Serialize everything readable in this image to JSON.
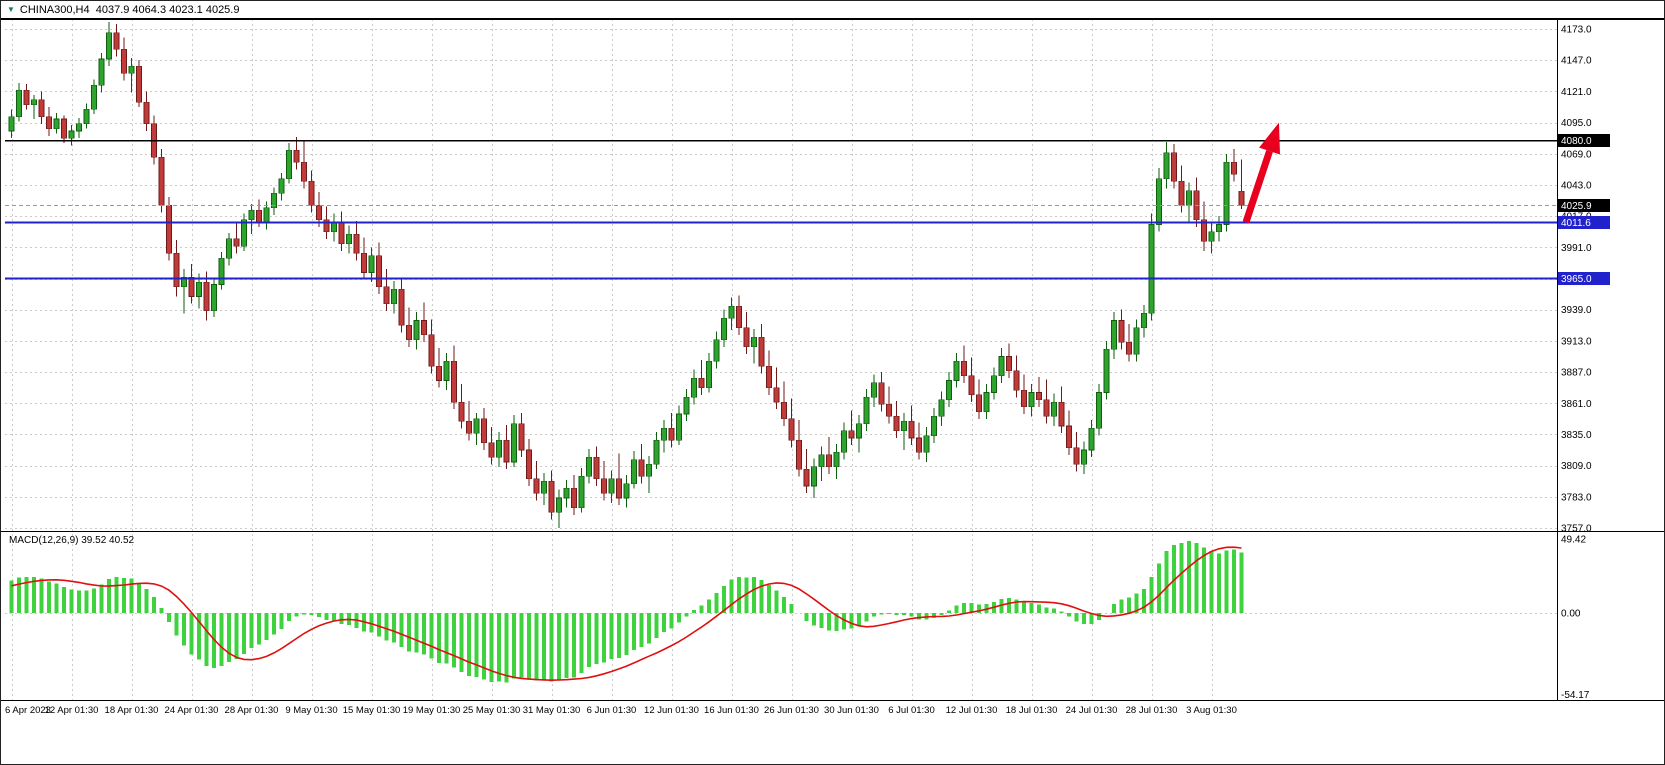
{
  "header": {
    "title": "CHINA300,H4  4037.9 4064.3 4023.1 4025.9",
    "symbol": "CHINA300",
    "timeframe": "H4"
  },
  "style": {
    "up_fill": "#2EA32E",
    "up_stroke": "#0E5E0E",
    "down_fill": "#C23B3B",
    "down_stroke": "#6E1A1A",
    "macd_bar": "#3FD23F",
    "macd_signal": "#E01010",
    "grid": "#CBCBCB",
    "background": "#FFFFFF",
    "frame": "#000000",
    "current_price_line": "#999999"
  },
  "chart_data": {
    "type": "candlestick",
    "title": "CHINA300,H4",
    "ohlc_current": {
      "open": 4037.9,
      "high": 4064.3,
      "low": 4023.1,
      "close": 4025.9
    },
    "price_axis": {
      "min": 3757.0,
      "max": 4173.0,
      "ticks": [
        "4173.0",
        "4147.0",
        "4121.0",
        "4095.0",
        "4069.0",
        "4043.0",
        "4017.0",
        "3991.0",
        "3965.0",
        "3939.0",
        "3913.0",
        "3887.0",
        "3861.0",
        "3835.0",
        "3809.0",
        "3783.0",
        "3757.0"
      ]
    },
    "time_labels": [
      "6 Apr 2023",
      "12 Apr 01:30",
      "18 Apr 01:30",
      "24 Apr 01:30",
      "28 Apr 01:30",
      "9 May 01:30",
      "15 May 01:30",
      "19 May 01:30",
      "25 May 01:30",
      "31 May 01:30",
      "6 Jun 01:30",
      "12 Jun 01:30",
      "16 Jun 01:30",
      "26 Jun 01:30",
      "30 Jun 01:30",
      "6 Jul 01:30",
      "12 Jul 01:30",
      "18 Jul 01:30",
      "24 Jul 01:30",
      "28 Jul 01:30",
      "3 Aug 01:30"
    ],
    "bars_per_time_label": 8,
    "candles": [
      [
        4088,
        4106,
        4082,
        4100
      ],
      [
        4100,
        4128,
        4096,
        4122
      ],
      [
        4122,
        4127,
        4106,
        4110
      ],
      [
        4110,
        4118,
        4098,
        4114
      ],
      [
        4114,
        4121,
        4094,
        4100
      ],
      [
        4100,
        4108,
        4084,
        4090
      ],
      [
        4090,
        4103,
        4086,
        4098
      ],
      [
        4098,
        4101,
        4078,
        4082
      ],
      [
        4082,
        4093,
        4076,
        4088
      ],
      [
        4088,
        4099,
        4082,
        4094
      ],
      [
        4094,
        4111,
        4090,
        4106
      ],
      [
        4106,
        4131,
        4102,
        4126
      ],
      [
        4126,
        4153,
        4120,
        4148
      ],
      [
        4148,
        4179,
        4142,
        4170
      ],
      [
        4170,
        4177,
        4150,
        4156
      ],
      [
        4156,
        4166,
        4130,
        4136
      ],
      [
        4136,
        4149,
        4120,
        4142
      ],
      [
        4142,
        4147,
        4108,
        4112
      ],
      [
        4112,
        4121,
        4088,
        4094
      ],
      [
        4094,
        4101,
        4060,
        4066
      ],
      [
        4066,
        4073,
        4020,
        4026
      ],
      [
        4026,
        4033,
        3980,
        3986
      ],
      [
        3986,
        3997,
        3950,
        3958
      ],
      [
        3958,
        3973,
        3936,
        3966
      ],
      [
        3966,
        3977,
        3944,
        3950
      ],
      [
        3950,
        3969,
        3940,
        3962
      ],
      [
        3962,
        3971,
        3930,
        3938
      ],
      [
        3938,
        3965,
        3933,
        3960
      ],
      [
        3960,
        3987,
        3956,
        3982
      ],
      [
        3982,
        4003,
        3976,
        3998
      ],
      [
        3998,
        4011,
        3986,
        3992
      ],
      [
        3992,
        4019,
        3988,
        4014
      ],
      [
        4014,
        4027,
        4002,
        4022
      ],
      [
        4022,
        4031,
        4008,
        4012
      ],
      [
        4012,
        4029,
        4006,
        4024
      ],
      [
        4024,
        4041,
        4018,
        4036
      ],
      [
        4036,
        4053,
        4030,
        4048
      ],
      [
        4048,
        4078,
        4044,
        4072
      ],
      [
        4072,
        4083,
        4056,
        4062
      ],
      [
        4062,
        4080,
        4040,
        4046
      ],
      [
        4046,
        4055,
        4020,
        4026
      ],
      [
        4026,
        4037,
        4008,
        4014
      ],
      [
        4014,
        4025,
        3998,
        4004
      ],
      [
        4004,
        4019,
        3996,
        4012
      ],
      [
        4012,
        4021,
        3988,
        3994
      ],
      [
        3994,
        4009,
        3986,
        4002
      ],
      [
        4002,
        4013,
        3980,
        3986
      ],
      [
        3986,
        3999,
        3964,
        3970
      ],
      [
        3970,
        3991,
        3962,
        3984
      ],
      [
        3984,
        3995,
        3952,
        3958
      ],
      [
        3958,
        3973,
        3938,
        3944
      ],
      [
        3944,
        3963,
        3936,
        3956
      ],
      [
        3956,
        3965,
        3920,
        3926
      ],
      [
        3926,
        3941,
        3908,
        3914
      ],
      [
        3914,
        3937,
        3906,
        3930
      ],
      [
        3930,
        3945,
        3912,
        3918
      ],
      [
        3918,
        3931,
        3886,
        3892
      ],
      [
        3892,
        3907,
        3874,
        3880
      ],
      [
        3880,
        3903,
        3872,
        3896
      ],
      [
        3896,
        3909,
        3856,
        3862
      ],
      [
        3862,
        3877,
        3840,
        3846
      ],
      [
        3846,
        3863,
        3830,
        3836
      ],
      [
        3836,
        3853,
        3826,
        3848
      ],
      [
        3848,
        3857,
        3822,
        3828
      ],
      [
        3828,
        3841,
        3810,
        3816
      ],
      [
        3816,
        3837,
        3808,
        3830
      ],
      [
        3830,
        3843,
        3806,
        3812
      ],
      [
        3812,
        3851,
        3808,
        3844
      ],
      [
        3844,
        3853,
        3816,
        3822
      ],
      [
        3822,
        3831,
        3792,
        3798
      ],
      [
        3798,
        3813,
        3780,
        3786
      ],
      [
        3786,
        3803,
        3776,
        3796
      ],
      [
        3796,
        3805,
        3764,
        3770
      ],
      [
        3770,
        3789,
        3757,
        3782
      ],
      [
        3782,
        3797,
        3774,
        3790
      ],
      [
        3790,
        3801,
        3768,
        3774
      ],
      [
        3774,
        3807,
        3770,
        3800
      ],
      [
        3800,
        3823,
        3794,
        3816
      ],
      [
        3816,
        3825,
        3792,
        3798
      ],
      [
        3798,
        3813,
        3780,
        3786
      ],
      [
        3786,
        3805,
        3778,
        3798
      ],
      [
        3798,
        3819,
        3776,
        3782
      ],
      [
        3782,
        3801,
        3774,
        3794
      ],
      [
        3794,
        3821,
        3790,
        3814
      ],
      [
        3814,
        3827,
        3794,
        3800
      ],
      [
        3800,
        3817,
        3786,
        3810
      ],
      [
        3810,
        3837,
        3806,
        3830
      ],
      [
        3830,
        3847,
        3820,
        3840
      ],
      [
        3840,
        3853,
        3824,
        3830
      ],
      [
        3830,
        3859,
        3826,
        3852
      ],
      [
        3852,
        3873,
        3846,
        3866
      ],
      [
        3866,
        3889,
        3860,
        3882
      ],
      [
        3882,
        3897,
        3868,
        3874
      ],
      [
        3874,
        3903,
        3870,
        3896
      ],
      [
        3896,
        3921,
        3890,
        3914
      ],
      [
        3914,
        3939,
        3908,
        3932
      ],
      [
        3932,
        3949,
        3922,
        3942
      ],
      [
        3942,
        3951,
        3918,
        3924
      ],
      [
        3924,
        3937,
        3902,
        3908
      ],
      [
        3908,
        3923,
        3894,
        3916
      ],
      [
        3916,
        3927,
        3886,
        3892
      ],
      [
        3892,
        3905,
        3868,
        3874
      ],
      [
        3874,
        3891,
        3856,
        3862
      ],
      [
        3862,
        3879,
        3842,
        3848
      ],
      [
        3848,
        3865,
        3824,
        3830
      ],
      [
        3830,
        3847,
        3800,
        3806
      ],
      [
        3806,
        3823,
        3786,
        3792
      ],
      [
        3792,
        3815,
        3782,
        3808
      ],
      [
        3808,
        3825,
        3796,
        3818
      ],
      [
        3818,
        3833,
        3802,
        3808
      ],
      [
        3808,
        3827,
        3798,
        3820
      ],
      [
        3820,
        3845,
        3814,
        3838
      ],
      [
        3838,
        3855,
        3826,
        3832
      ],
      [
        3832,
        3851,
        3820,
        3844
      ],
      [
        3844,
        3873,
        3838,
        3866
      ],
      [
        3866,
        3885,
        3858,
        3878
      ],
      [
        3878,
        3887,
        3854,
        3860
      ],
      [
        3860,
        3875,
        3844,
        3850
      ],
      [
        3850,
        3863,
        3832,
        3838
      ],
      [
        3838,
        3853,
        3822,
        3846
      ],
      [
        3846,
        3859,
        3826,
        3832
      ],
      [
        3832,
        3845,
        3814,
        3820
      ],
      [
        3820,
        3841,
        3812,
        3834
      ],
      [
        3834,
        3857,
        3828,
        3850
      ],
      [
        3850,
        3871,
        3842,
        3864
      ],
      [
        3864,
        3887,
        3858,
        3880
      ],
      [
        3880,
        3903,
        3874,
        3896
      ],
      [
        3896,
        3909,
        3878,
        3884
      ],
      [
        3884,
        3899,
        3862,
        3868
      ],
      [
        3868,
        3881,
        3848,
        3854
      ],
      [
        3854,
        3877,
        3848,
        3870
      ],
      [
        3870,
        3891,
        3864,
        3884
      ],
      [
        3884,
        3907,
        3878,
        3900
      ],
      [
        3900,
        3911,
        3882,
        3888
      ],
      [
        3888,
        3901,
        3866,
        3872
      ],
      [
        3872,
        3885,
        3852,
        3858
      ],
      [
        3858,
        3877,
        3850,
        3870
      ],
      [
        3870,
        3883,
        3858,
        3864
      ],
      [
        3864,
        3881,
        3844,
        3850
      ],
      [
        3850,
        3869,
        3842,
        3862
      ],
      [
        3862,
        3875,
        3836,
        3842
      ],
      [
        3842,
        3855,
        3818,
        3824
      ],
      [
        3824,
        3837,
        3804,
        3810
      ],
      [
        3810,
        3829,
        3802,
        3822
      ],
      [
        3822,
        3847,
        3816,
        3840
      ],
      [
        3840,
        3877,
        3834,
        3870
      ],
      [
        3870,
        3913,
        3864,
        3906
      ],
      [
        3906,
        3937,
        3898,
        3930
      ],
      [
        3930,
        3939,
        3906,
        3912
      ],
      [
        3912,
        3927,
        3896,
        3902
      ],
      [
        3902,
        3931,
        3896,
        3924
      ],
      [
        3924,
        3943,
        3916,
        3936
      ],
      [
        3936,
        4019,
        3930,
        4010
      ],
      [
        4010,
        4057,
        4004,
        4048
      ],
      [
        4048,
        4079,
        4040,
        4070
      ],
      [
        4070,
        4077,
        4040,
        4046
      ],
      [
        4046,
        4059,
        4020,
        4026
      ],
      [
        4026,
        4045,
        4012,
        4038
      ],
      [
        4038,
        4049,
        4008,
        4014
      ],
      [
        4014,
        4029,
        3988,
        3996
      ],
      [
        3996,
        4011,
        3986,
        4004
      ],
      [
        4004,
        4017,
        3996,
        4010
      ],
      [
        4010,
        4069,
        4004,
        4062
      ],
      [
        4062,
        4073,
        4046,
        4052
      ],
      [
        4037.9,
        4064.3,
        4023.1,
        4025.9
      ]
    ],
    "levels": [
      {
        "price": 4080.0,
        "label": "4080.0",
        "color": "#000000",
        "width": 1.6
      },
      {
        "price": 4011.6,
        "label": "4011.6",
        "color": "#2222CC",
        "width": 2
      },
      {
        "price": 3965.0,
        "label": "3965.0",
        "color": "#2222CC",
        "width": 2
      }
    ],
    "current_price": {
      "value": 4025.9,
      "label": "4025.9",
      "tag_color": "#000000"
    },
    "annotation_arrow": {
      "from_bar": 164.6,
      "from_price": 4012,
      "to_bar": 169,
      "to_price": 4095,
      "color": "#E8001E"
    },
    "macd": {
      "label": "MACD(12,26,9) 39.52 40.52",
      "fast": 12,
      "slow": 26,
      "signal": 9,
      "macd_value": 39.52,
      "signal_value": 40.52,
      "axis_ticks": [
        "49.42",
        "0.00",
        "-54.17"
      ],
      "axis_max": 49.42,
      "axis_min": -54.17
    }
  }
}
